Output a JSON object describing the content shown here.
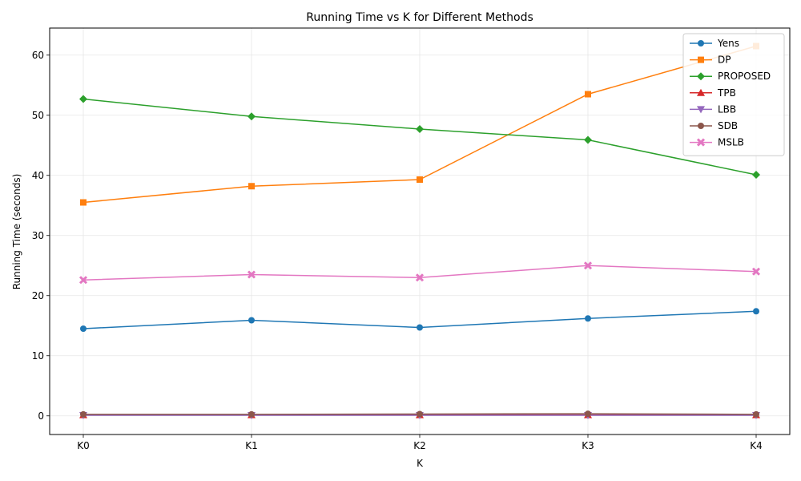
{
  "chart_data": {
    "type": "line",
    "title": "Running Time vs K for Different Methods",
    "xlabel": "K",
    "ylabel": "Running Time (seconds)",
    "categories": [
      "K0",
      "K1",
      "K2",
      "K3",
      "K4"
    ],
    "ylim": [
      -3.1,
      64.5
    ],
    "yticks": [
      0,
      10,
      20,
      30,
      40,
      50,
      60
    ],
    "grid": true,
    "legend_position": "top-right",
    "series": [
      {
        "name": "Yens",
        "color": "#1f77b4",
        "marker": "circle",
        "values": [
          14.5,
          15.9,
          14.7,
          16.2,
          17.4
        ]
      },
      {
        "name": "DP",
        "color": "#ff7f0e",
        "marker": "square",
        "values": [
          35.5,
          38.2,
          39.3,
          53.5,
          61.5
        ]
      },
      {
        "name": "PROPOSED",
        "color": "#2ca02c",
        "marker": "diamond",
        "values": [
          52.7,
          49.8,
          47.7,
          45.9,
          40.1
        ]
      },
      {
        "name": "TPB",
        "color": "#d62728",
        "marker": "triangle-up",
        "values": [
          0.15,
          0.15,
          0.15,
          0.15,
          0.15
        ]
      },
      {
        "name": "LBB",
        "color": "#9467bd",
        "marker": "triangle-down",
        "values": [
          0.1,
          0.1,
          0.1,
          0.1,
          0.1
        ]
      },
      {
        "name": "SDB",
        "color": "#8c564b",
        "marker": "circle",
        "values": [
          0.25,
          0.25,
          0.3,
          0.35,
          0.25
        ]
      },
      {
        "name": "MSLB",
        "color": "#e377c2",
        "marker": "x",
        "values": [
          22.6,
          23.5,
          23.0,
          25.0,
          24.0
        ]
      }
    ]
  }
}
